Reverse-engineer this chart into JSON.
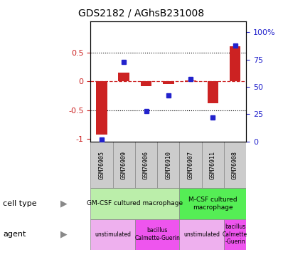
{
  "title": "GDS2182 / AGhsB231008",
  "samples": [
    "GSM76905",
    "GSM76909",
    "GSM76906",
    "GSM76910",
    "GSM76907",
    "GSM76911",
    "GSM76908"
  ],
  "log_ratio": [
    -0.93,
    0.15,
    -0.08,
    -0.05,
    0.02,
    -0.38,
    0.62
  ],
  "percentile_rank": [
    2,
    73,
    28,
    42,
    57,
    22,
    88
  ],
  "left_ylim": [
    -1.05,
    1.05
  ],
  "right_ylim": [
    0,
    110
  ],
  "left_yticks": [
    -1,
    -0.5,
    0,
    0.5
  ],
  "right_yticks": [
    0,
    25,
    50,
    75,
    100
  ],
  "left_yticklabels": [
    "-1",
    "-0.5",
    "0",
    "0.5"
  ],
  "right_yticklabels": [
    "0",
    "25",
    "50",
    "75",
    "100%"
  ],
  "hlines": [
    0.5,
    -0.5
  ],
  "bar_color": "#cc2222",
  "dot_color": "#2222cc",
  "cell_types": [
    {
      "label": "GM-CSF cultured macrophage",
      "start": 0,
      "end": 4,
      "color": "#bbeeaa"
    },
    {
      "label": "M-CSF cultured\nmacrophage",
      "start": 4,
      "end": 7,
      "color": "#55ee55"
    }
  ],
  "agents": [
    {
      "label": "unstimulated",
      "start": 0,
      "end": 2,
      "color": "#eeb0ee"
    },
    {
      "label": "bacillus\nCalmette-Guerin",
      "start": 2,
      "end": 4,
      "color": "#ee55ee"
    },
    {
      "label": "unstimulated",
      "start": 4,
      "end": 6,
      "color": "#eeb0ee"
    },
    {
      "label": "bacillus\nCalmette\n-Guerin",
      "start": 6,
      "end": 7,
      "color": "#ee55ee"
    }
  ],
  "sample_bg": "#cccccc",
  "bar_width": 0.5
}
